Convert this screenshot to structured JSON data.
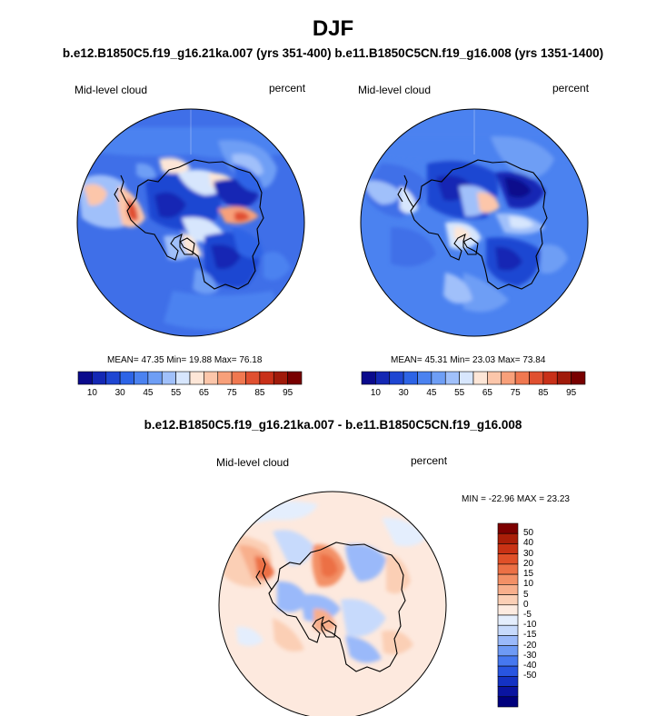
{
  "title": "DJF",
  "subtitle": "b.e12.B1850C5.f19_g16.21ka.007 (yrs 351-400) b.e11.B1850C5CN.f19_g16.008 (yrs 1351-1400)",
  "colors": {
    "seq": [
      "#0a0a8c",
      "#1428b4",
      "#1e46d2",
      "#2d64e6",
      "#4b82f0",
      "#6e9ef5",
      "#a0c0fa",
      "#d7e6fd",
      "#fde6d7",
      "#fcc6aa",
      "#f8a07a",
      "#f07850",
      "#e05030",
      "#c83018",
      "#a01a0a",
      "#780000"
    ],
    "div": [
      "#00007d",
      "#0a14a0",
      "#1432c3",
      "#2855e1",
      "#4678f0",
      "#6e9af5",
      "#9ab9fa",
      "#c7dafc",
      "#e4eefd",
      "#fdebe0",
      "#fbcfb5",
      "#f8af8c",
      "#f39066",
      "#ec7045",
      "#e05028",
      "#c93214",
      "#aa1e08",
      "#7d0000"
    ],
    "coast": "#000000"
  },
  "chart_data": [
    {
      "type": "heatmap",
      "panel": "left",
      "label": "Mid-level cloud",
      "units": "percent",
      "stats": "MEAN=  47.35  Min=  19.88  Max=  76.18",
      "colorbar_ticks": [
        "10",
        "30",
        "45",
        "55",
        "65",
        "75",
        "85",
        "95"
      ]
    },
    {
      "type": "heatmap",
      "panel": "right",
      "label": "Mid-level cloud",
      "units": "percent",
      "stats": "MEAN=  45.31  Min=  23.03  Max=  73.84",
      "colorbar_ticks": [
        "10",
        "30",
        "45",
        "55",
        "65",
        "75",
        "85",
        "95"
      ]
    },
    {
      "type": "heatmap",
      "panel": "difference",
      "title": "b.e12.B1850C5.f19_g16.21ka.007 - b.e11.B1850C5CN.f19_g16.008",
      "label": "Mid-level cloud",
      "units": "percent",
      "minmax": "MIN = -22.96 MAX =  23.23",
      "colorbar_ticks": [
        "50",
        "40",
        "30",
        "20",
        "15",
        "10",
        "5",
        "0",
        "-5",
        "-10",
        "-15",
        "-20",
        "-30",
        "-40",
        "-50"
      ]
    }
  ]
}
